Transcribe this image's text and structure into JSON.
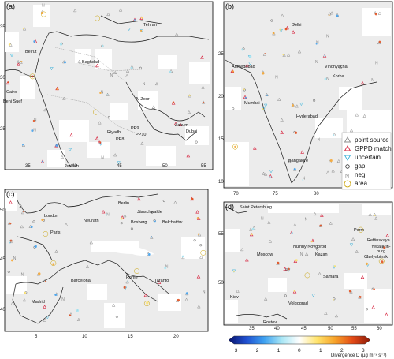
{
  "panels": [
    {
      "label": "(a)",
      "yticks": [
        "35",
        "30",
        "25"
      ],
      "xticks": [
        "35",
        "40",
        "45",
        "50",
        "55"
      ],
      "cities": [
        "Beirut",
        "Baghdad",
        "Tehran",
        "Cairo",
        "Beni Suef",
        "Al Zour",
        "Riyadh",
        "PP9",
        "PP10",
        "PP8",
        "Zakum",
        "Dubai",
        "Jeddah"
      ]
    },
    {
      "label": "(b)",
      "yticks": [
        "25",
        "20",
        "15",
        "10"
      ],
      "xticks": [
        "70",
        "75",
        "80"
      ],
      "cities": [
        "Delhi",
        "Ahmedabad",
        "Vindhyachal",
        "Korba",
        "Mumbai",
        "Hyderabad",
        "Bangalore"
      ]
    },
    {
      "label": "(c)",
      "yticks": [
        "50",
        "45",
        "40"
      ],
      "xticks": [
        "5",
        "10",
        "15",
        "20"
      ],
      "cities": [
        "Berlin",
        "London",
        "Neurath",
        "Jänschwalde",
        "Boxberg",
        "Bełchatów",
        "Paris",
        "Barcelona",
        "Rome",
        "Taranto",
        "Madrid"
      ]
    },
    {
      "label": "(d)",
      "yticks": [
        "55",
        "50"
      ],
      "xticks": [
        "35",
        "40",
        "45",
        "50",
        "55",
        "60"
      ],
      "cities": [
        "Saint Petersburg",
        "Perm",
        "Reftinskaya",
        "Yekaterin-",
        "burg",
        "Chelyabinsk",
        "Moscow",
        "Nizhny Novgorod",
        "Kazan",
        "Samara",
        "Kiev",
        "Volgograd",
        "Rostov"
      ]
    }
  ],
  "legend": {
    "items": [
      {
        "label": "point source",
        "symbol": "triangle",
        "color": "#8c8c8c"
      },
      {
        "label": "GPPD match",
        "symbol": "triangle",
        "color": "#d61f3a"
      },
      {
        "label": "uncertain",
        "symbol": "triangle-down",
        "color": "#3ab0d8"
      },
      {
        "label": "gap",
        "symbol": "circle-small",
        "color": "#333333"
      },
      {
        "label": "neg",
        "symbol": "letter-N",
        "color": "#888888"
      },
      {
        "label": "area",
        "symbol": "circle-large",
        "color": "#c8a000"
      }
    ]
  },
  "colorbar": {
    "ticks": [
      "−3",
      "−2",
      "−1",
      "0",
      "1",
      "2",
      "3"
    ],
    "title": "Divergence D (µg m⁻² s⁻¹)",
    "range": [
      -3,
      3
    ],
    "colors": [
      "#08136b",
      "#1f4fd0",
      "#3da0f0",
      "#a8e6f5",
      "#ffffff",
      "#ffe36b",
      "#f7a32a",
      "#e34a16",
      "#8b1a0a"
    ]
  }
}
